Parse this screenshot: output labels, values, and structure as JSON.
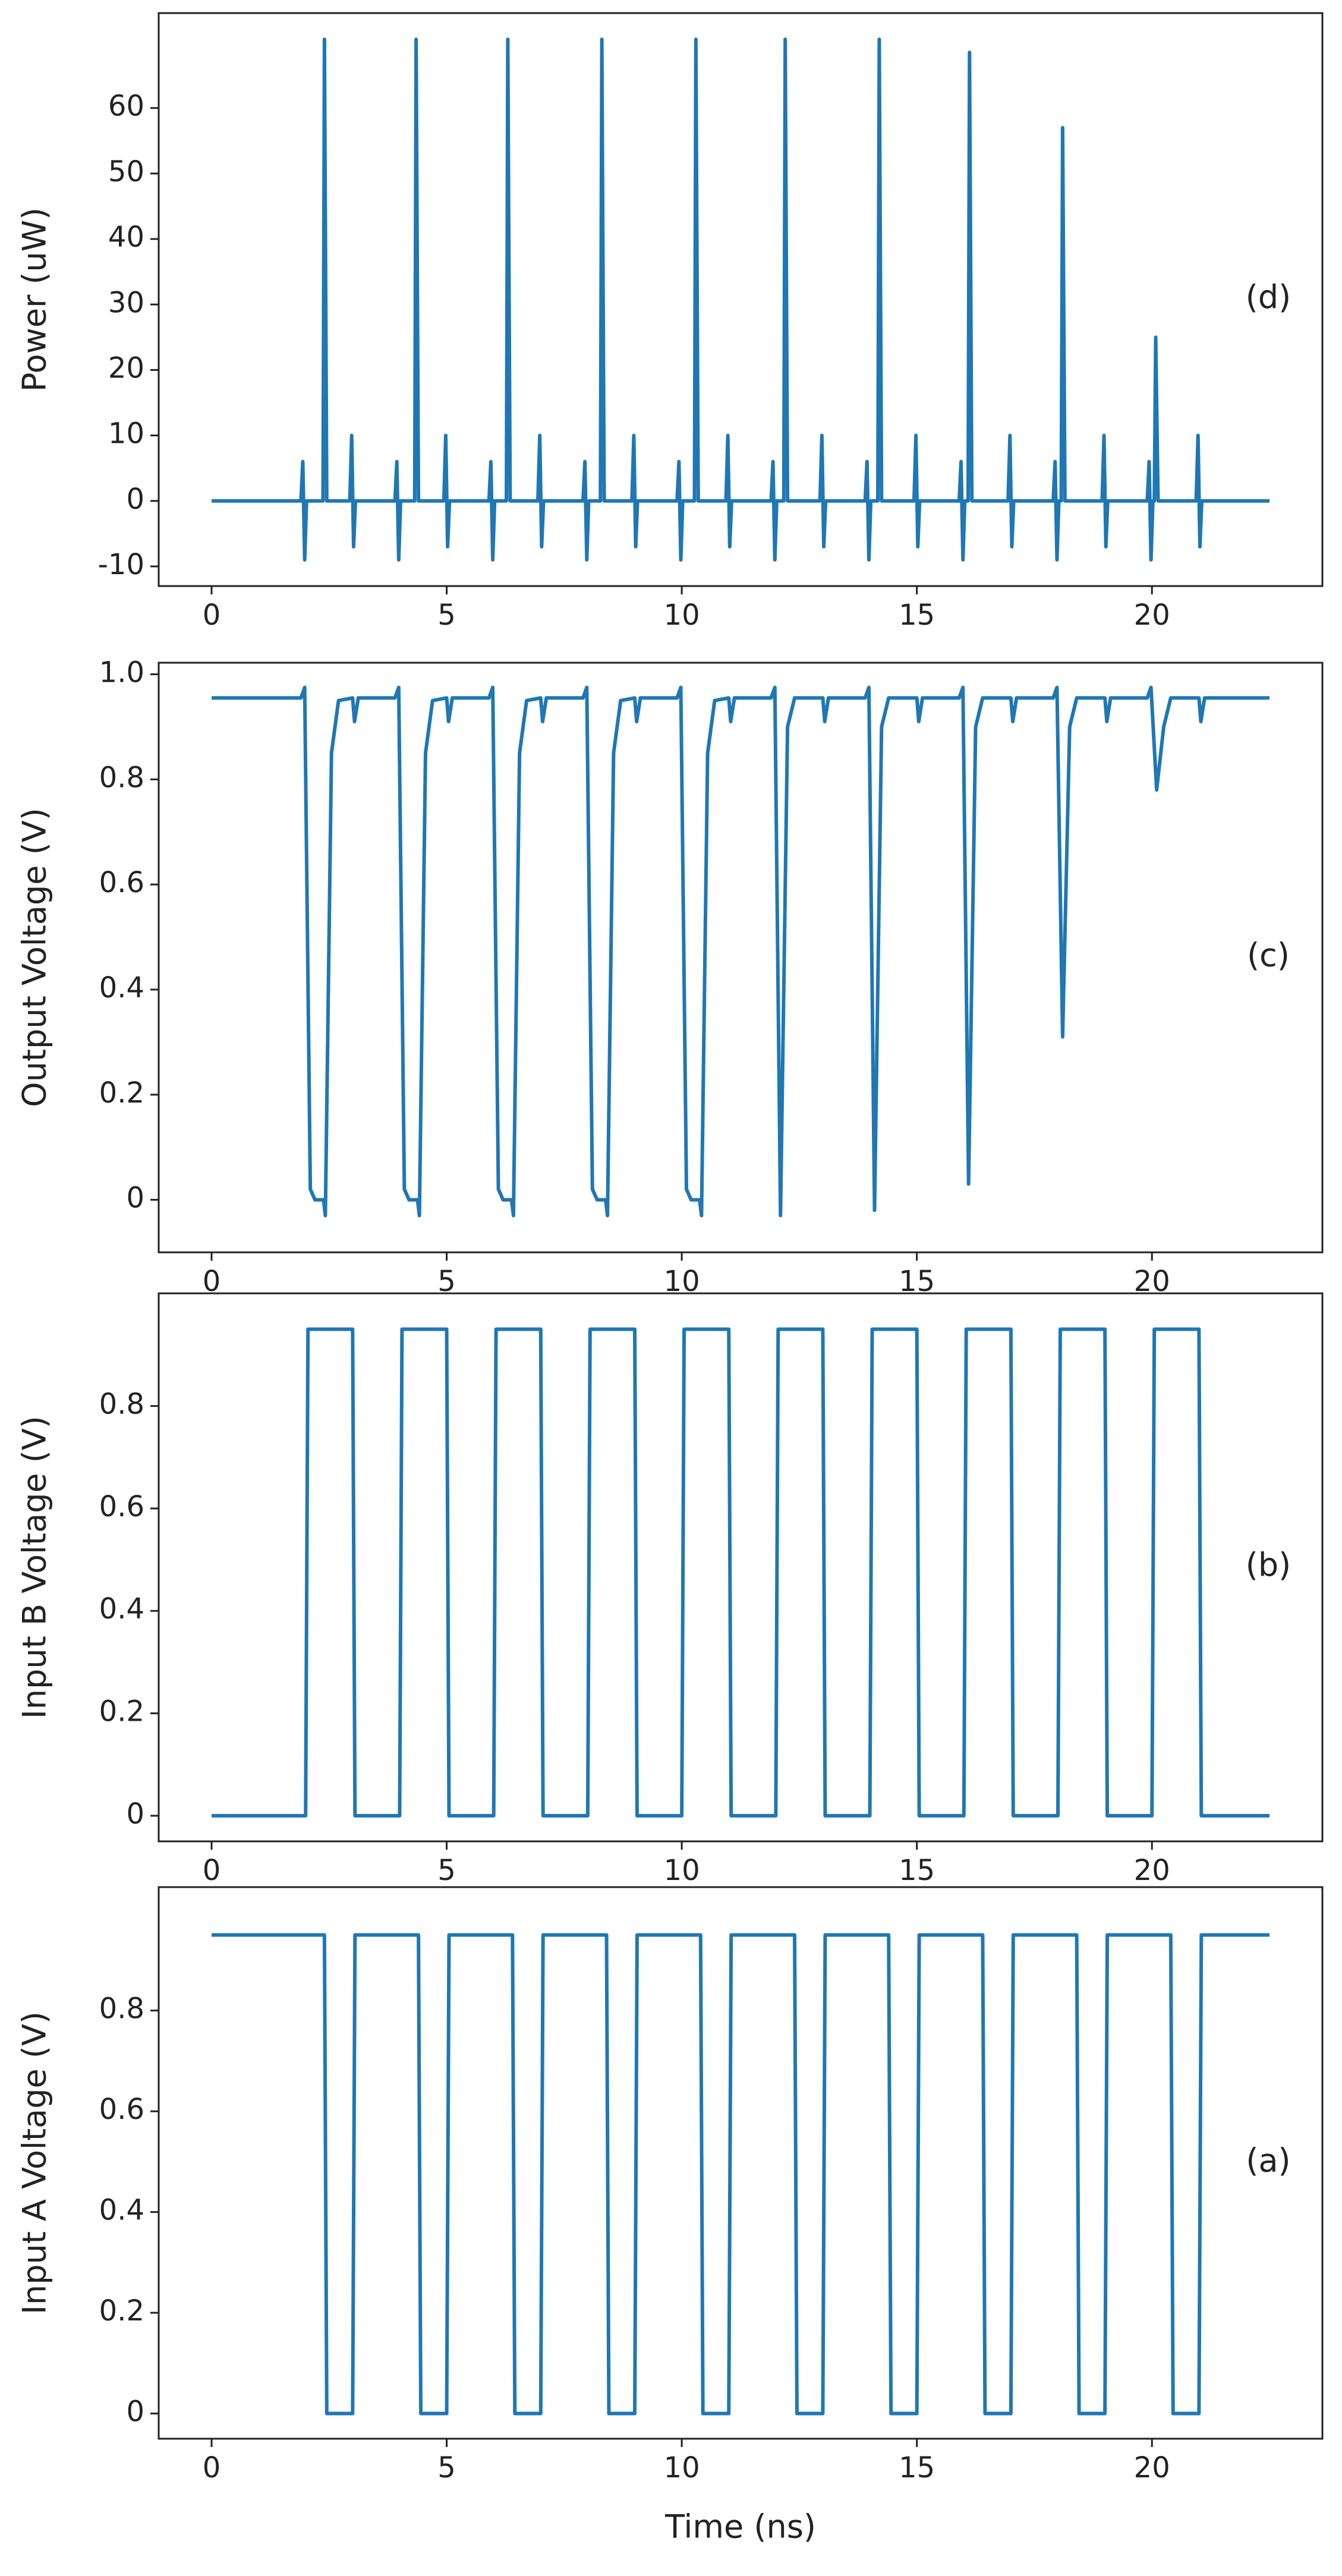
{
  "chart_data": [
    {
      "type": "line",
      "ylabel": "Power (uW)",
      "annotation": "(d)",
      "color": "#1f77b4",
      "xlim": [
        -1.125,
        23.625
      ],
      "xticks": [
        0,
        5,
        10,
        15,
        20
      ],
      "ylim": [
        -13,
        74.5
      ],
      "yticks": [
        -10,
        0,
        10,
        20,
        30,
        40,
        50,
        60
      ],
      "x": [
        0,
        1.9,
        1.94,
        1.98,
        2.02,
        2.37,
        2.4,
        2.45,
        2.94,
        2.98,
        3.02,
        3.06,
        3.9,
        3.94,
        3.98,
        4.02,
        4.32,
        4.35,
        4.4,
        4.94,
        4.98,
        5.02,
        5.06,
        5.9,
        5.94,
        5.98,
        6.02,
        6.27,
        6.3,
        6.35,
        6.94,
        6.98,
        7.02,
        7.06,
        7.9,
        7.94,
        7.98,
        8.02,
        8.27,
        8.3,
        8.35,
        8.94,
        8.98,
        9.02,
        9.06,
        9.9,
        9.94,
        9.98,
        10.02,
        10.27,
        10.3,
        10.35,
        10.94,
        10.98,
        11.02,
        11.06,
        11.9,
        11.94,
        11.98,
        12.02,
        12.17,
        12.2,
        12.25,
        12.94,
        12.98,
        13.02,
        13.06,
        13.9,
        13.94,
        13.98,
        14.02,
        14.17,
        14.2,
        14.25,
        14.94,
        14.98,
        15.02,
        15.06,
        15.9,
        15.94,
        15.98,
        16.02,
        16.09,
        16.12,
        16.17,
        16.94,
        16.98,
        17.02,
        17.06,
        17.9,
        17.94,
        17.98,
        18.02,
        18.07,
        18.1,
        18.15,
        18.94,
        18.98,
        19.02,
        19.06,
        19.9,
        19.94,
        19.98,
        20.02,
        20.05,
        20.08,
        20.13,
        20.94,
        20.98,
        21.02,
        21.06,
        22.5
      ],
      "values": [
        0,
        0,
        6,
        -9,
        0,
        0,
        70.5,
        0,
        0,
        10,
        -7,
        0,
        0,
        6,
        -9,
        0,
        0,
        70.5,
        0,
        0,
        10,
        -7,
        0,
        0,
        6,
        -9,
        0,
        0,
        70.5,
        0,
        0,
        10,
        -7,
        0,
        0,
        6,
        -9,
        0,
        0,
        70.5,
        0,
        0,
        10,
        -7,
        0,
        0,
        6,
        -9,
        0,
        0,
        70.5,
        0,
        0,
        10,
        -7,
        0,
        0,
        6,
        -9,
        0,
        0,
        70.5,
        0,
        0,
        10,
        -7,
        0,
        0,
        6,
        -9,
        0,
        0,
        70.5,
        0,
        0,
        10,
        -7,
        0,
        0,
        6,
        -9,
        0,
        0,
        68.5,
        0,
        0,
        10,
        -7,
        0,
        0,
        6,
        -9,
        0,
        0,
        57,
        0,
        0,
        10,
        -7,
        0,
        0,
        6,
        -9,
        0,
        0,
        25,
        0,
        0,
        10,
        -7,
        0,
        0
      ]
    },
    {
      "type": "line",
      "ylabel": "Output Voltage (V)",
      "annotation": "(c)",
      "color": "#1f77b4",
      "xlim": [
        -1.125,
        23.625
      ],
      "xticks": [
        0,
        5,
        10,
        15,
        20
      ],
      "ylim": [
        -0.1,
        1.022
      ],
      "yticks": [
        0,
        0.2,
        0.4,
        0.6,
        0.8,
        {
          "value": 1,
          "label": "1.0"
        }
      ],
      "x": [
        0,
        1.9,
        1.98,
        2.1,
        2.2,
        2.38,
        2.42,
        2.55,
        2.7,
        3,
        3.04,
        3.12,
        3.9,
        3.98,
        4.1,
        4.2,
        4.38,
        4.42,
        4.55,
        4.7,
        5,
        5.04,
        5.12,
        5.9,
        5.98,
        6.1,
        6.2,
        6.38,
        6.42,
        6.55,
        6.7,
        7,
        7.04,
        7.12,
        7.9,
        7.98,
        8.1,
        8.2,
        8.38,
        8.42,
        8.55,
        8.7,
        9,
        9.04,
        9.12,
        9.9,
        9.98,
        10.1,
        10.2,
        10.38,
        10.42,
        10.55,
        10.7,
        11,
        11.04,
        11.12,
        11.9,
        11.98,
        12.1,
        12.25,
        12.4,
        13,
        13.04,
        13.12,
        13.9,
        13.98,
        14.1,
        14.25,
        14.4,
        15,
        15.04,
        15.12,
        15.9,
        15.98,
        16.1,
        16.25,
        16.4,
        17,
        17.04,
        17.12,
        17.9,
        17.98,
        18.1,
        18.25,
        18.4,
        19,
        19.04,
        19.12,
        19.9,
        19.98,
        20.1,
        20.25,
        20.4,
        21,
        21.04,
        21.12,
        22.5
      ],
      "values": [
        0.955,
        0.955,
        0.975,
        0.02,
        0,
        0,
        -0.03,
        0.85,
        0.95,
        0.955,
        0.91,
        0.955,
        0.955,
        0.975,
        0.02,
        0,
        0,
        -0.03,
        0.85,
        0.95,
        0.955,
        0.91,
        0.955,
        0.955,
        0.975,
        0.02,
        0,
        0,
        -0.03,
        0.85,
        0.95,
        0.955,
        0.91,
        0.955,
        0.955,
        0.975,
        0.02,
        0,
        0,
        -0.03,
        0.85,
        0.95,
        0.955,
        0.91,
        0.955,
        0.955,
        0.975,
        0.02,
        0,
        0,
        -0.03,
        0.85,
        0.95,
        0.955,
        0.91,
        0.955,
        0.955,
        0.975,
        -0.03,
        0.9,
        0.955,
        0.955,
        0.91,
        0.955,
        0.955,
        0.975,
        -0.02,
        0.9,
        0.955,
        0.955,
        0.91,
        0.955,
        0.955,
        0.975,
        0.03,
        0.9,
        0.955,
        0.955,
        0.91,
        0.955,
        0.955,
        0.975,
        0.31,
        0.9,
        0.955,
        0.955,
        0.91,
        0.955,
        0.955,
        0.975,
        0.78,
        0.9,
        0.955,
        0.955,
        0.91,
        0.955,
        0.955
      ]
    },
    {
      "type": "line",
      "ylabel": "Input B Voltage (V)",
      "annotation": "(b)",
      "color": "#1f77b4",
      "xlim": [
        -1.125,
        23.625
      ],
      "xticks": [
        0,
        5,
        10,
        15,
        20
      ],
      "ylim": [
        -0.05,
        1.02
      ],
      "yticks": [
        0,
        0.2,
        0.4,
        0.6,
        0.8
      ],
      "x": [
        0,
        2,
        2.05,
        3,
        3.05,
        4,
        4.05,
        5,
        5.05,
        6,
        6.05,
        7,
        7.05,
        8,
        8.05,
        9,
        9.05,
        10,
        10.05,
        11,
        11.05,
        12,
        12.05,
        13,
        13.05,
        14,
        14.05,
        15,
        15.05,
        16,
        16.05,
        17,
        17.05,
        18,
        18.05,
        19,
        19.05,
        20,
        20.05,
        21,
        21.05,
        22.5
      ],
      "values": [
        0,
        0,
        0.95,
        0.95,
        0,
        0,
        0.95,
        0.95,
        0,
        0,
        0.95,
        0.95,
        0,
        0,
        0.95,
        0.95,
        0,
        0,
        0.95,
        0.95,
        0,
        0,
        0.95,
        0.95,
        0,
        0,
        0.95,
        0.95,
        0,
        0,
        0.95,
        0.95,
        0,
        0,
        0.95,
        0.95,
        0,
        0,
        0.95,
        0.95,
        0,
        0
      ]
    },
    {
      "type": "line",
      "ylabel": "Input A Voltage (V)",
      "annotation": "(a)",
      "xlabel": "Time (ns)",
      "color": "#1f77b4",
      "xlim": [
        -1.125,
        23.625
      ],
      "xticks": [
        0,
        5,
        10,
        15,
        20
      ],
      "ylim": [
        -0.05,
        1.045
      ],
      "yticks": [
        0,
        0.2,
        0.4,
        0.6,
        0.8
      ],
      "x": [
        0,
        2.4,
        2.45,
        3,
        3.05,
        4.4,
        4.45,
        5,
        5.05,
        6.4,
        6.45,
        7,
        7.05,
        8.4,
        8.45,
        9,
        9.05,
        10.4,
        10.45,
        11,
        11.05,
        12.4,
        12.45,
        13,
        13.05,
        14.4,
        14.45,
        15,
        15.05,
        16.4,
        16.45,
        17,
        17.05,
        18.4,
        18.45,
        19,
        19.05,
        20.4,
        20.45,
        21,
        21.05,
        22.5
      ],
      "values": [
        0.95,
        0.95,
        0,
        0,
        0.95,
        0.95,
        0,
        0,
        0.95,
        0.95,
        0,
        0,
        0.95,
        0.95,
        0,
        0,
        0.95,
        0.95,
        0,
        0,
        0.95,
        0.95,
        0,
        0,
        0.95,
        0.95,
        0,
        0,
        0.95,
        0.95,
        0,
        0,
        0.95,
        0.95,
        0,
        0,
        0.95,
        0.95,
        0,
        0,
        0.95,
        0.95
      ]
    }
  ]
}
